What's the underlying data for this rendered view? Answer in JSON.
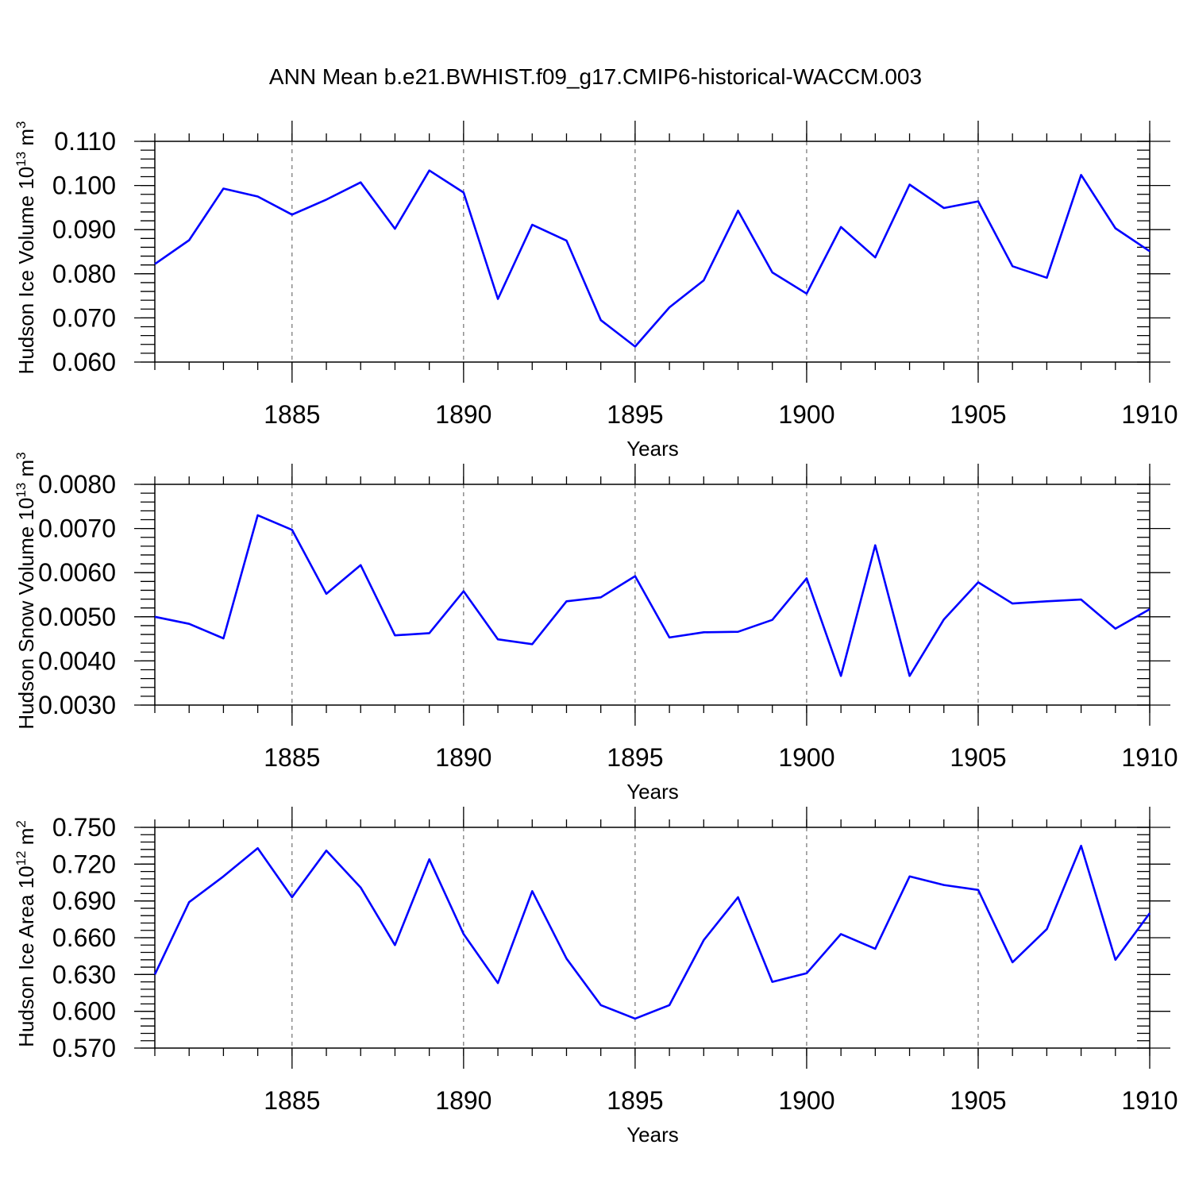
{
  "title": "ANN Mean b.e21.BWHIST.f09_g17.CMIP6-historical-WACCM.003",
  "chart_data": [
    {
      "type": "line",
      "ylabel": "Hudson Ice Volume 10",
      "ylabel_exp": "13",
      "ylabel_unit": " m",
      "ylabel_unit_exp": "3",
      "xlabel": "Years",
      "xlim": [
        1881,
        1910
      ],
      "ylim": [
        0.06,
        0.11
      ],
      "yticks": [
        0.06,
        0.07,
        0.08,
        0.09,
        0.1,
        0.11
      ],
      "ytick_labels": [
        "0.060",
        "0.070",
        "0.080",
        "0.090",
        "0.100",
        "0.110"
      ],
      "xticks": [
        1885,
        1890,
        1895,
        1900,
        1905,
        1910
      ],
      "xtick_labels": [
        "1885",
        "1890",
        "1895",
        "1900",
        "1905",
        "1910"
      ],
      "grid": "vertical dashed at major x ticks",
      "color": "#0000ff",
      "x": [
        1881,
        1882,
        1883,
        1884,
        1885,
        1886,
        1887,
        1888,
        1889,
        1890,
        1891,
        1892,
        1893,
        1894,
        1895,
        1896,
        1897,
        1898,
        1899,
        1900,
        1901,
        1902,
        1903,
        1904,
        1905,
        1906,
        1907,
        1908,
        1909,
        1910
      ],
      "values": [
        0.0822,
        0.0876,
        0.0993,
        0.0975,
        0.0934,
        0.0968,
        0.1007,
        0.0902,
        0.1034,
        0.0984,
        0.0743,
        0.0911,
        0.0875,
        0.0695,
        0.0635,
        0.0724,
        0.0785,
        0.0943,
        0.0803,
        0.0755,
        0.0906,
        0.0837,
        0.1002,
        0.0949,
        0.0964,
        0.0817,
        0.0791,
        0.1024,
        0.0903,
        0.0851
      ]
    },
    {
      "type": "line",
      "ylabel": "Hudson Snow Volume 10",
      "ylabel_exp": "13",
      "ylabel_unit": " m",
      "ylabel_unit_exp": "3",
      "xlabel": "Years",
      "xlim": [
        1881,
        1910
      ],
      "ylim": [
        0.003,
        0.008
      ],
      "yticks": [
        0.003,
        0.004,
        0.005,
        0.006,
        0.007,
        0.008
      ],
      "ytick_labels": [
        "0.0030",
        "0.0040",
        "0.0050",
        "0.0060",
        "0.0070",
        "0.0080"
      ],
      "xticks": [
        1885,
        1890,
        1895,
        1900,
        1905,
        1910
      ],
      "xtick_labels": [
        "1885",
        "1890",
        "1895",
        "1900",
        "1905",
        "1910"
      ],
      "grid": "vertical dashed at major x ticks",
      "color": "#0000ff",
      "x": [
        1881,
        1882,
        1883,
        1884,
        1885,
        1886,
        1887,
        1888,
        1889,
        1890,
        1891,
        1892,
        1893,
        1894,
        1895,
        1896,
        1897,
        1898,
        1899,
        1900,
        1901,
        1902,
        1903,
        1904,
        1905,
        1906,
        1907,
        1908,
        1909,
        1910
      ],
      "values": [
        0.005,
        0.00484,
        0.00451,
        0.0073,
        0.00697,
        0.00552,
        0.00617,
        0.00458,
        0.00463,
        0.00558,
        0.00449,
        0.00438,
        0.00535,
        0.00544,
        0.00592,
        0.00453,
        0.00465,
        0.00466,
        0.00493,
        0.00587,
        0.00366,
        0.00662,
        0.00366,
        0.00494,
        0.00578,
        0.0053,
        0.00535,
        0.00539,
        0.00473,
        0.00517
      ]
    },
    {
      "type": "line",
      "ylabel": "Hudson Ice Area 10",
      "ylabel_exp": "12",
      "ylabel_unit": " m",
      "ylabel_unit_exp": "2",
      "xlabel": "Years",
      "xlim": [
        1881,
        1910
      ],
      "ylim": [
        0.57,
        0.75
      ],
      "yticks": [
        0.57,
        0.6,
        0.63,
        0.66,
        0.69,
        0.72,
        0.75
      ],
      "ytick_labels": [
        "0.570",
        "0.600",
        "0.630",
        "0.660",
        "0.690",
        "0.720",
        "0.750"
      ],
      "xticks": [
        1885,
        1890,
        1895,
        1900,
        1905,
        1910
      ],
      "xtick_labels": [
        "1885",
        "1890",
        "1895",
        "1900",
        "1905",
        "1910"
      ],
      "grid": "vertical dashed at major x ticks",
      "color": "#0000ff",
      "x": [
        1881,
        1882,
        1883,
        1884,
        1885,
        1886,
        1887,
        1888,
        1889,
        1890,
        1891,
        1892,
        1893,
        1894,
        1895,
        1896,
        1897,
        1898,
        1899,
        1900,
        1901,
        1902,
        1903,
        1904,
        1905,
        1906,
        1907,
        1908,
        1909,
        1910
      ],
      "values": [
        0.63,
        0.689,
        0.71,
        0.733,
        0.693,
        0.731,
        0.701,
        0.654,
        0.724,
        0.663,
        0.623,
        0.698,
        0.643,
        0.605,
        0.594,
        0.605,
        0.658,
        0.693,
        0.624,
        0.631,
        0.663,
        0.651,
        0.71,
        0.703,
        0.699,
        0.64,
        0.667,
        0.735,
        0.642,
        0.68
      ]
    }
  ]
}
